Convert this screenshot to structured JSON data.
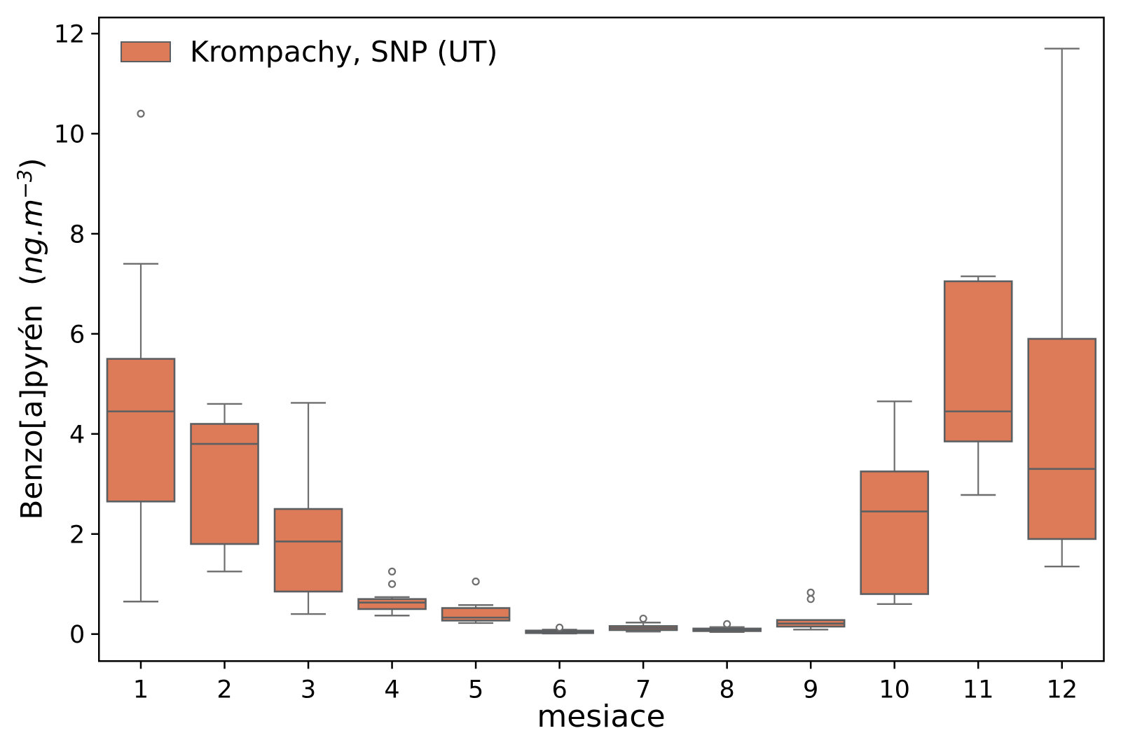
{
  "colors": {
    "box_fill": "#DD7B58",
    "box_edge": "#5c5f62",
    "whisker": "#6e6e6e",
    "flier_edge": "#6e6e6e",
    "spine": "#000000",
    "text": "#000000",
    "background": "#ffffff"
  },
  "axes": {
    "xlabel": "mesiace",
    "ylabel_parts": {
      "prefix": "Benzo[a]pyrén  (",
      "unit_italic": "ng.m",
      "exponent": "−3",
      "suffix": ")"
    }
  },
  "chart_data": {
    "type": "boxplot",
    "title": "",
    "xlabel": "mesiace",
    "ylabel": "Benzo[a]pyrén (ng.m⁻³)",
    "categories": [
      "1",
      "2",
      "3",
      "4",
      "5",
      "6",
      "7",
      "8",
      "9",
      "10",
      "11",
      "12"
    ],
    "yticks": [
      0,
      2,
      4,
      6,
      8,
      10,
      12
    ],
    "ylim": [
      -0.54,
      12.32
    ],
    "grid": false,
    "legend_position": "upper left",
    "series": [
      {
        "name": "Krompachy, SNP (UT)",
        "fill_color": "#DD7B58",
        "boxes": [
          {
            "month": 1,
            "whislo": 0.65,
            "q1": 2.65,
            "med": 4.45,
            "q3": 5.5,
            "whishi": 7.4,
            "fliers": [
              10.4
            ]
          },
          {
            "month": 2,
            "whislo": 1.25,
            "q1": 1.8,
            "med": 3.8,
            "q3": 4.2,
            "whishi": 4.6,
            "fliers": []
          },
          {
            "month": 3,
            "whislo": 0.4,
            "q1": 0.85,
            "med": 1.85,
            "q3": 2.5,
            "whishi": 4.62,
            "fliers": []
          },
          {
            "month": 4,
            "whislo": 0.37,
            "q1": 0.5,
            "med": 0.63,
            "q3": 0.7,
            "whishi": 0.74,
            "fliers": [
              1.0,
              1.25
            ]
          },
          {
            "month": 5,
            "whislo": 0.22,
            "q1": 0.27,
            "med": 0.33,
            "q3": 0.52,
            "whishi": 0.58,
            "fliers": [
              1.05
            ]
          },
          {
            "month": 6,
            "whislo": 0.01,
            "q1": 0.02,
            "med": 0.04,
            "q3": 0.07,
            "whishi": 0.09,
            "fliers": [
              0.13
            ]
          },
          {
            "month": 7,
            "whislo": 0.05,
            "q1": 0.08,
            "med": 0.12,
            "q3": 0.16,
            "whishi": 0.23,
            "fliers": [
              0.31
            ]
          },
          {
            "month": 8,
            "whislo": 0.04,
            "q1": 0.06,
            "med": 0.08,
            "q3": 0.11,
            "whishi": 0.14,
            "fliers": [
              0.2
            ]
          },
          {
            "month": 9,
            "whislo": 0.09,
            "q1": 0.15,
            "med": 0.21,
            "q3": 0.28,
            "whishi": 0.28,
            "fliers": [
              0.7,
              0.83
            ]
          },
          {
            "month": 10,
            "whislo": 0.6,
            "q1": 0.8,
            "med": 2.45,
            "q3": 3.25,
            "whishi": 4.65,
            "fliers": []
          },
          {
            "month": 11,
            "whislo": 2.78,
            "q1": 3.85,
            "med": 4.45,
            "q3": 7.05,
            "whishi": 7.15,
            "fliers": []
          },
          {
            "month": 12,
            "whislo": 1.35,
            "q1": 1.9,
            "med": 3.3,
            "q3": 5.9,
            "whishi": 11.7,
            "fliers": []
          }
        ]
      }
    ]
  }
}
